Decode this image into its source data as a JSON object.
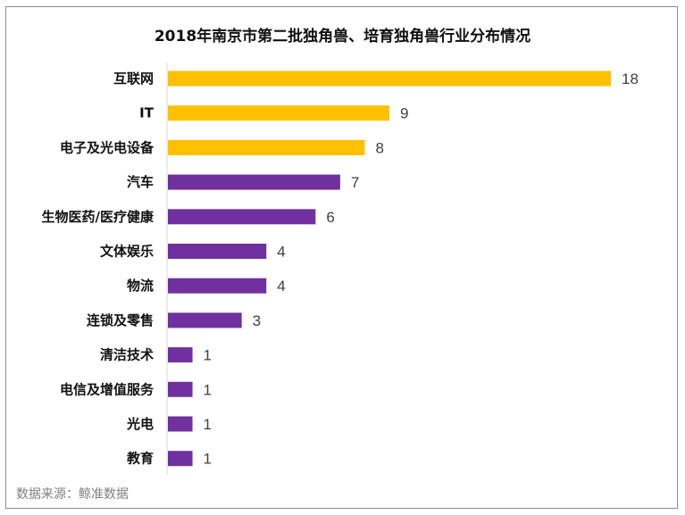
{
  "chart_data": {
    "type": "bar",
    "orientation": "horizontal",
    "title": "2018年南京市第二批独角兽、培育独角兽行业分布情况",
    "categories": [
      "互联网",
      "IT",
      "电子及光电设备",
      "汽车",
      "生物医药/医疗健康",
      "文体娱乐",
      "物流",
      "连锁及零售",
      "清洁技术",
      "电信及增值服务",
      "光电",
      "教育"
    ],
    "values": [
      18,
      9,
      8,
      7,
      6,
      4,
      4,
      3,
      1,
      1,
      1,
      1
    ],
    "bar_colors": [
      "#FFC000",
      "#FFC000",
      "#FFC000",
      "#7030A0",
      "#7030A0",
      "#7030A0",
      "#7030A0",
      "#7030A0",
      "#7030A0",
      "#7030A0",
      "#7030A0",
      "#7030A0"
    ],
    "xlim": [
      0,
      18
    ],
    "grid": false,
    "legend": "none",
    "data_labels": true
  },
  "source_note": "数据来源：鲸准数据"
}
